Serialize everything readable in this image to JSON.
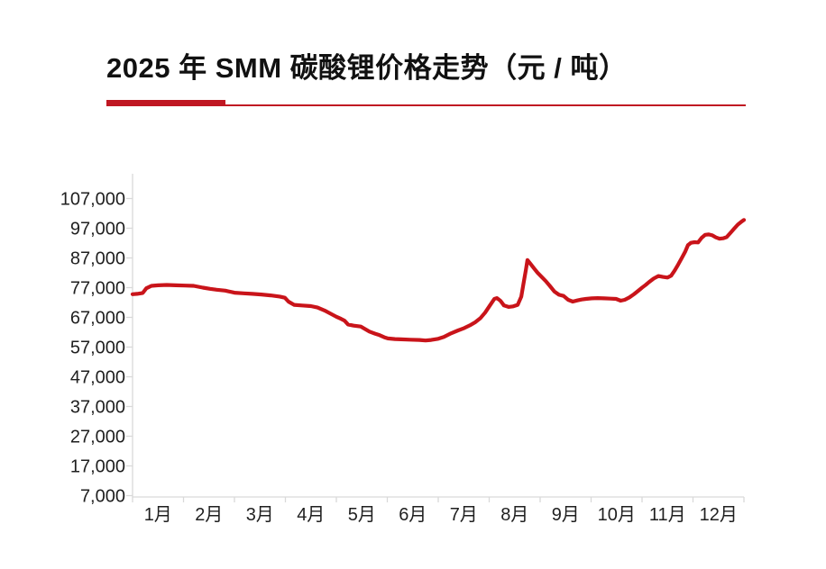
{
  "header": {
    "title": "2025 年 SMM 碳酸锂价格走势（元 / 吨）",
    "underline_thick_color": "#C01722",
    "underline_thin_color": "#C01722"
  },
  "chart_data": {
    "type": "line",
    "title": "2025 年 SMM 碳酸锂价格走势（元 / 吨）",
    "ylabel": "",
    "xlabel": "",
    "unit": "元/吨",
    "grid": false,
    "legend_position": "none",
    "axis_color": "#D9D9D9",
    "tick_label_color": "#1F1F1F",
    "ylim": [
      7000,
      107000
    ],
    "y_ticks": [
      7000,
      17000,
      27000,
      37000,
      47000,
      57000,
      67000,
      77000,
      87000,
      97000,
      107000
    ],
    "x_tick_labels": [
      "1月",
      "2月",
      "3月",
      "4月",
      "5月",
      "6月",
      "7月",
      "8月",
      "9月",
      "10月",
      "11月",
      "12月"
    ],
    "series": [
      {
        "name": "SMM 碳酸锂价格",
        "color": "#C9141A",
        "points": [
          [
            0,
            74800
          ],
          [
            0.09,
            74900
          ],
          [
            0.2,
            75200
          ],
          [
            0.27,
            76800
          ],
          [
            0.37,
            77600
          ],
          [
            0.5,
            77800
          ],
          [
            0.67,
            77900
          ],
          [
            0.85,
            77800
          ],
          [
            1.03,
            77700
          ],
          [
            1.2,
            77600
          ],
          [
            1.38,
            77000
          ],
          [
            1.52,
            76600
          ],
          [
            1.65,
            76300
          ],
          [
            1.82,
            76000
          ],
          [
            2,
            75300
          ],
          [
            2.18,
            75100
          ],
          [
            2.35,
            74900
          ],
          [
            2.53,
            74700
          ],
          [
            2.71,
            74400
          ],
          [
            2.89,
            74000
          ],
          [
            2.99,
            73600
          ],
          [
            3.06,
            72300
          ],
          [
            3.17,
            71200
          ],
          [
            3.33,
            71000
          ],
          [
            3.5,
            70800
          ],
          [
            3.63,
            70300
          ],
          [
            3.77,
            69300
          ],
          [
            3.88,
            68300
          ],
          [
            4,
            67200
          ],
          [
            4.09,
            66500
          ],
          [
            4.16,
            65900
          ],
          [
            4.23,
            64600
          ],
          [
            4.34,
            64200
          ],
          [
            4.48,
            63900
          ],
          [
            4.57,
            63000
          ],
          [
            4.65,
            62200
          ],
          [
            4.76,
            61500
          ],
          [
            4.85,
            61000
          ],
          [
            4.94,
            60300
          ],
          [
            5.01,
            59900
          ],
          [
            5.15,
            59700
          ],
          [
            5.27,
            59600
          ],
          [
            5.45,
            59500
          ],
          [
            5.63,
            59400
          ],
          [
            5.75,
            59200
          ],
          [
            5.86,
            59400
          ],
          [
            6,
            59800
          ],
          [
            6.11,
            60400
          ],
          [
            6.25,
            61600
          ],
          [
            6.39,
            62600
          ],
          [
            6.51,
            63400
          ],
          [
            6.62,
            64300
          ],
          [
            6.73,
            65400
          ],
          [
            6.83,
            66800
          ],
          [
            6.92,
            68600
          ],
          [
            7.01,
            70900
          ],
          [
            7.1,
            73200
          ],
          [
            7.15,
            73500
          ],
          [
            7.22,
            72600
          ],
          [
            7.29,
            71000
          ],
          [
            7.38,
            70500
          ],
          [
            7.47,
            70700
          ],
          [
            7.56,
            71200
          ],
          [
            7.63,
            74000
          ],
          [
            7.68,
            79000
          ],
          [
            7.72,
            83000
          ],
          [
            7.75,
            86300
          ],
          [
            7.81,
            85000
          ],
          [
            7.88,
            83500
          ],
          [
            7.95,
            82000
          ],
          [
            8.02,
            80800
          ],
          [
            8.11,
            79200
          ],
          [
            8.19,
            77600
          ],
          [
            8.28,
            75700
          ],
          [
            8.37,
            74600
          ],
          [
            8.46,
            74200
          ],
          [
            8.55,
            72900
          ],
          [
            8.64,
            72300
          ],
          [
            8.73,
            72700
          ],
          [
            8.81,
            73000
          ],
          [
            8.9,
            73200
          ],
          [
            9.01,
            73400
          ],
          [
            9.13,
            73500
          ],
          [
            9.26,
            73400
          ],
          [
            9.38,
            73300
          ],
          [
            9.49,
            73200
          ],
          [
            9.58,
            72600
          ],
          [
            9.66,
            72900
          ],
          [
            9.75,
            73700
          ],
          [
            9.84,
            74800
          ],
          [
            9.93,
            76000
          ],
          [
            10,
            77000
          ],
          [
            10.07,
            77900
          ],
          [
            10.14,
            78900
          ],
          [
            10.23,
            80100
          ],
          [
            10.32,
            80900
          ],
          [
            10.41,
            80600
          ],
          [
            10.5,
            80400
          ],
          [
            10.57,
            81000
          ],
          [
            10.64,
            82800
          ],
          [
            10.71,
            84800
          ],
          [
            10.78,
            87000
          ],
          [
            10.85,
            89200
          ],
          [
            10.9,
            91300
          ],
          [
            10.96,
            92100
          ],
          [
            11.03,
            92300
          ],
          [
            11.1,
            92200
          ],
          [
            11.17,
            93800
          ],
          [
            11.24,
            94800
          ],
          [
            11.31,
            94900
          ],
          [
            11.38,
            94600
          ],
          [
            11.45,
            93900
          ],
          [
            11.52,
            93500
          ],
          [
            11.59,
            93600
          ],
          [
            11.66,
            94000
          ],
          [
            11.74,
            95500
          ],
          [
            11.81,
            96900
          ],
          [
            11.88,
            98200
          ],
          [
            11.95,
            99200
          ],
          [
            12,
            99800
          ]
        ]
      }
    ]
  }
}
